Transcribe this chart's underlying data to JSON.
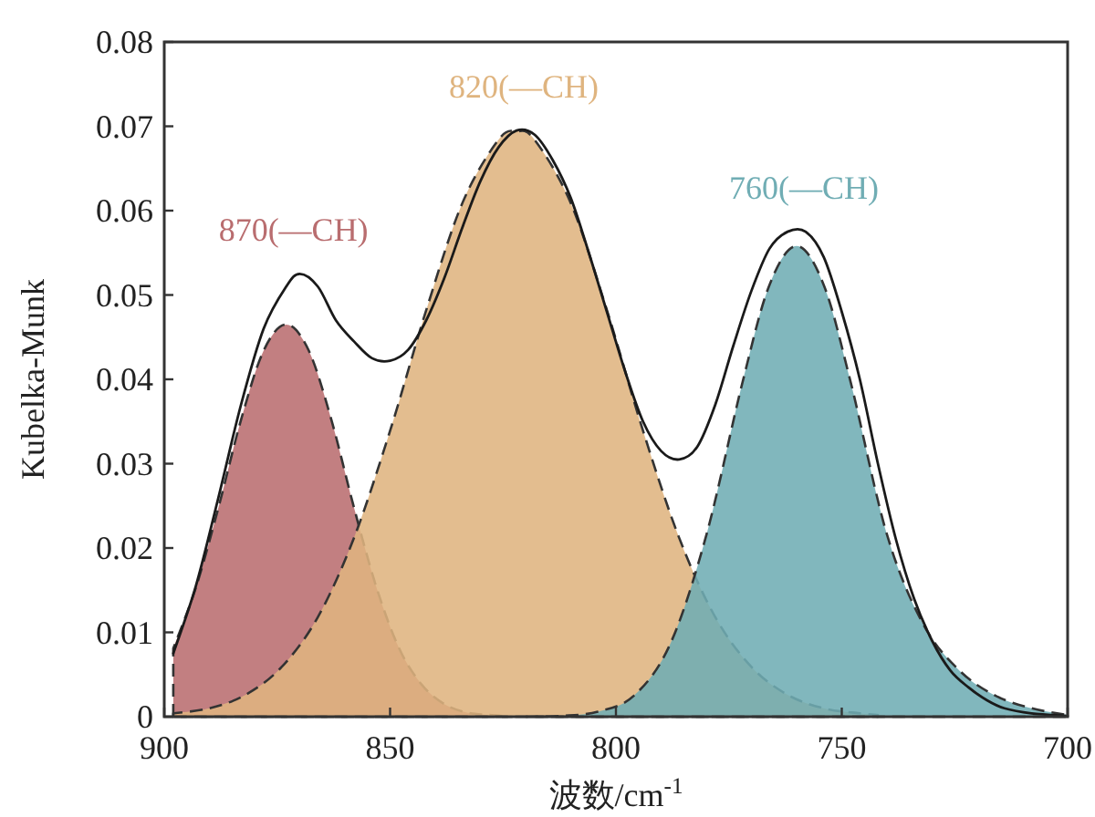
{
  "chart_data": {
    "type": "area",
    "xlabel": "波数/cm$^{-1}$",
    "ylabel": "Kubelka-Munk",
    "xlim": [
      900,
      700
    ],
    "xticks": [
      900,
      850,
      800,
      750,
      700
    ],
    "ylim": [
      0,
      0.08
    ],
    "yticks": [
      0,
      0.01,
      0.02,
      0.03,
      0.04,
      0.05,
      0.06,
      0.07,
      0.08
    ],
    "grid": false,
    "annotations": [
      "870(—CH)",
      "820(—CH)",
      "760(—CH)"
    ],
    "series": [
      {
        "color": "#b96d6f",
        "line_style": "dashed",
        "x": [
          898,
          893,
          888,
          883,
          878,
          873,
          868,
          863,
          858,
          853,
          848,
          843,
          838,
          833,
          828,
          823
        ],
        "values": [
          0.0081,
          0.0153,
          0.0248,
          0.0352,
          0.0434,
          0.0465,
          0.0434,
          0.0352,
          0.0248,
          0.0153,
          0.0081,
          0.0038,
          0.0015,
          0.0005,
          0.0002,
          0
        ]
      },
      {
        "color": "#dfb47f",
        "line_style": "dashed",
        "x": [
          898,
          890,
          882,
          874,
          866,
          858,
          850,
          842,
          834,
          826,
          822,
          818,
          810,
          802,
          794,
          786,
          778,
          770,
          762,
          754,
          746,
          742
        ],
        "values": [
          0.0004,
          0.001,
          0.0026,
          0.0059,
          0.0118,
          0.0212,
          0.0339,
          0.0482,
          0.0609,
          0.0684,
          0.0694,
          0.0684,
          0.0609,
          0.0482,
          0.0339,
          0.0212,
          0.0118,
          0.0059,
          0.0026,
          0.001,
          0.0004,
          0.0002
        ]
      },
      {
        "color": "#70adb4",
        "line_style": "dashed",
        "x": [
          820,
          812,
          804,
          796,
          788,
          780,
          772,
          766,
          760,
          754,
          748,
          740,
          732,
          724,
          716,
          708,
          700
        ],
        "values": [
          0,
          0.0001,
          0.0006,
          0.0025,
          0.0086,
          0.0215,
          0.0396,
          0.0512,
          0.0558,
          0.0512,
          0.0396,
          0.0216,
          0.011,
          0.0055,
          0.0025,
          0.001,
          0.0002
        ]
      },
      {
        "type": "line",
        "color": "#1a1a1a",
        "line_style": "solid",
        "x": [
          898,
          893,
          888,
          883,
          878,
          873,
          870,
          866,
          862,
          858,
          854,
          850,
          846,
          842,
          838,
          834,
          830,
          826,
          822,
          818,
          814,
          810,
          806,
          802,
          798,
          794,
          790,
          786,
          782,
          778,
          774,
          770,
          766,
          762,
          758,
          754,
          750,
          746,
          742,
          738,
          734,
          730,
          726,
          722,
          718,
          714,
          708,
          700
        ],
        "values": [
          0.0075,
          0.0155,
          0.026,
          0.037,
          0.046,
          0.051,
          0.0525,
          0.051,
          0.047,
          0.0445,
          0.0425,
          0.0422,
          0.0435,
          0.047,
          0.052,
          0.058,
          0.0635,
          0.0675,
          0.0695,
          0.069,
          0.066,
          0.0615,
          0.055,
          0.048,
          0.041,
          0.035,
          0.0315,
          0.0305,
          0.032,
          0.037,
          0.044,
          0.0505,
          0.0555,
          0.0575,
          0.0575,
          0.0545,
          0.048,
          0.04,
          0.03,
          0.021,
          0.014,
          0.009,
          0.0055,
          0.0035,
          0.002,
          0.001,
          0.0004,
          0.0001
        ]
      }
    ]
  }
}
